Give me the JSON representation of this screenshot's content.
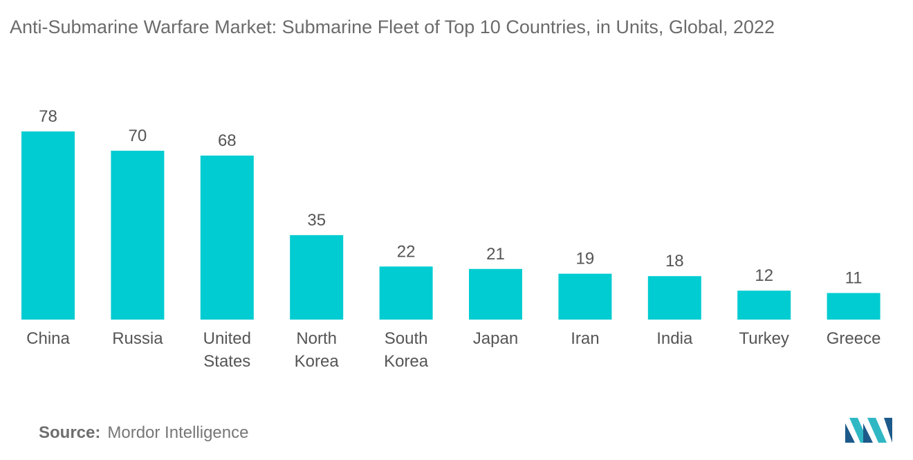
{
  "title": "Anti-Submarine Warfare Market: Submarine Fleet of Top 10 Countries, in Units, Global, 2022",
  "source": {
    "label": "Source:",
    "text": "Mordor Intelligence"
  },
  "colors": {
    "bar": "#00ccd1",
    "text": "#555555",
    "logo_dark": "#1d5a8a",
    "logo_teal": "#2fb8c4"
  },
  "chart_data": {
    "type": "bar",
    "title": "Anti-Submarine Warfare Market: Submarine Fleet of Top 10 Countries, in Units, Global, 2022",
    "xlabel": "",
    "ylabel": "",
    "ylim": [
      0,
      78
    ],
    "grid": false,
    "categories": [
      [
        "China"
      ],
      [
        "Russia"
      ],
      [
        "United",
        "States"
      ],
      [
        "North",
        "Korea"
      ],
      [
        "South",
        "Korea"
      ],
      [
        "Japan"
      ],
      [
        "Iran"
      ],
      [
        "India"
      ],
      [
        "Turkey"
      ],
      [
        "Greece"
      ]
    ],
    "values": [
      78,
      70,
      68,
      35,
      22,
      21,
      19,
      18,
      12,
      11
    ]
  }
}
